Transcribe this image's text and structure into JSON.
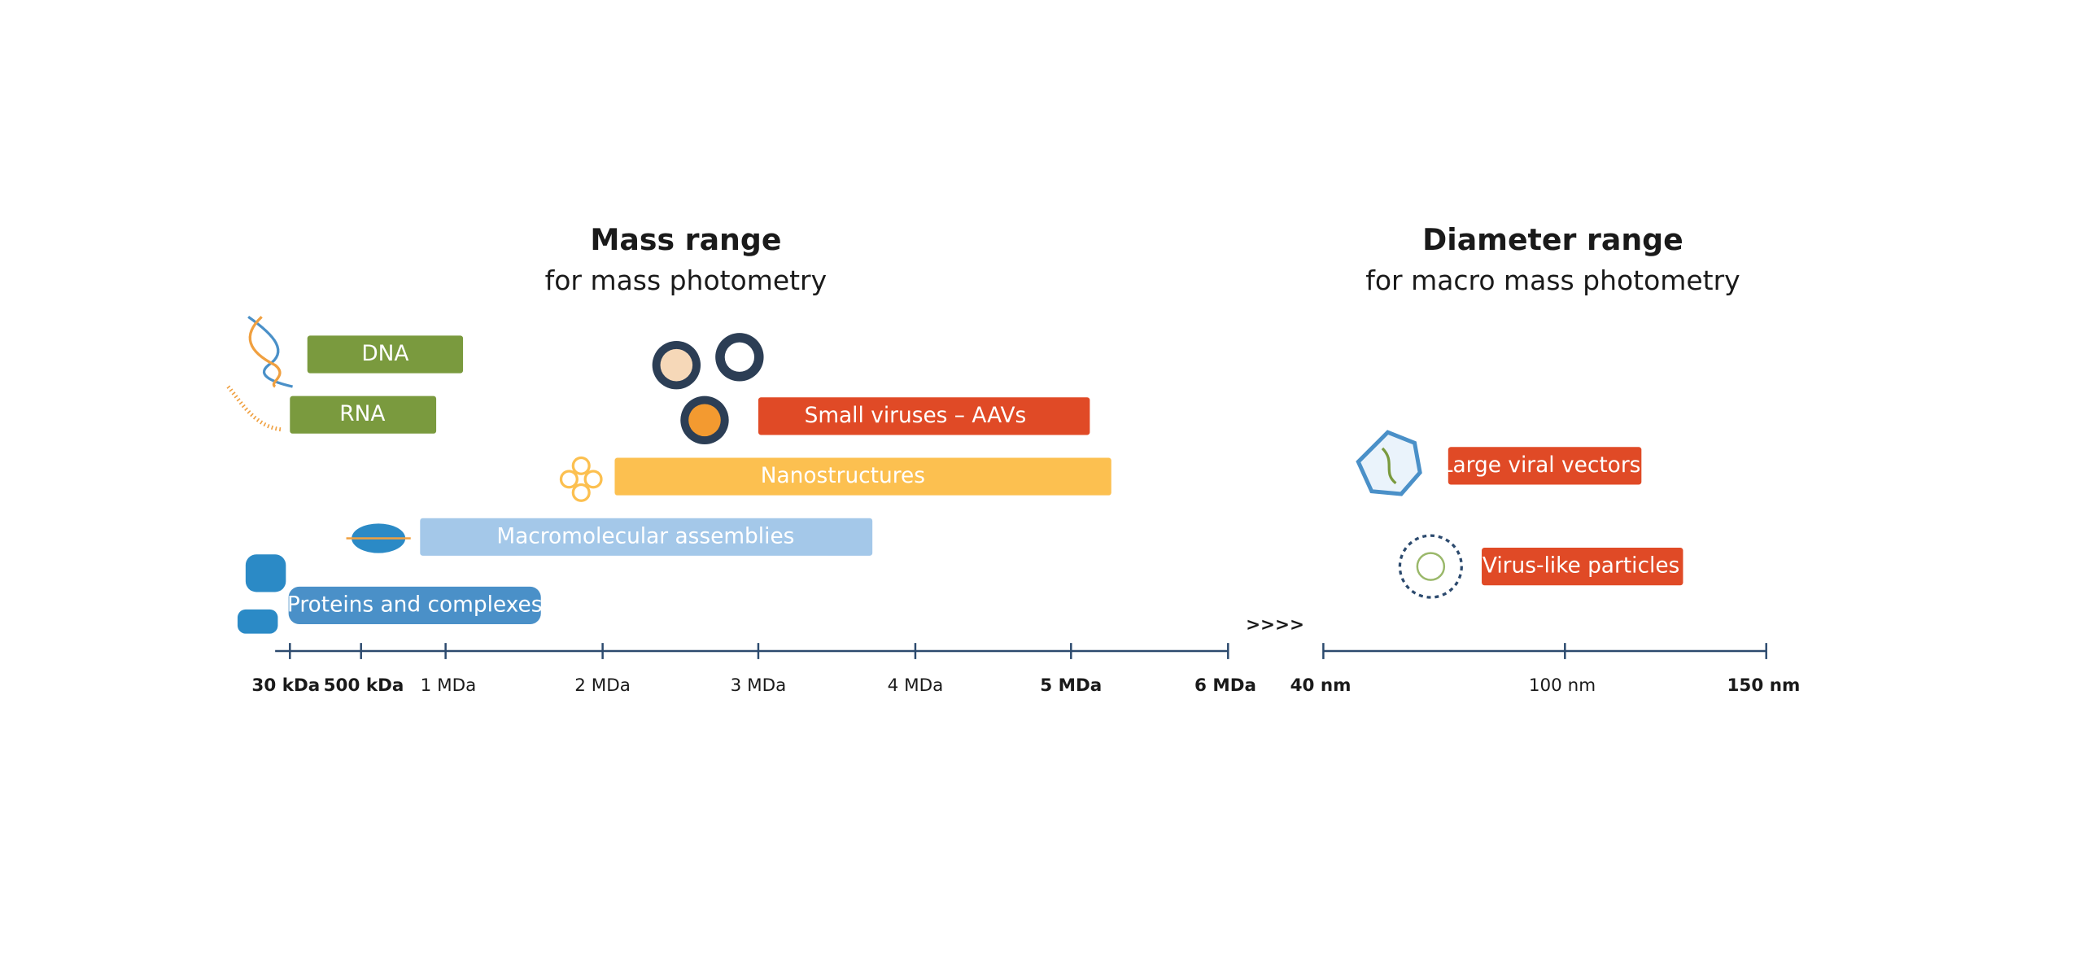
{
  "mass_section": {
    "title": "Mass range",
    "subtitle": "for mass photometry",
    "bars": [
      {
        "label": "DNA"
      },
      {
        "label": "RNA"
      },
      {
        "label": "Small viruses – AAVs"
      },
      {
        "label": "Nanostructures"
      },
      {
        "label": "Macromolecular assemblies"
      },
      {
        "label": "Proteins and complexes"
      }
    ],
    "axis_ticks": [
      "30 kDa",
      "500 kDa",
      "1 MDa",
      "2 MDa",
      "3 MDa",
      "4 MDa",
      "5 MDa",
      "6 MDa"
    ]
  },
  "separator": ">>>>",
  "diameter_section": {
    "title": "Diameter range",
    "subtitle": "for macro mass photometry",
    "bars": [
      {
        "label": "Large viral vectors"
      },
      {
        "label": "Virus-like particles"
      }
    ],
    "axis_ticks": [
      "40 nm",
      "100 nm",
      "150 nm"
    ]
  }
}
